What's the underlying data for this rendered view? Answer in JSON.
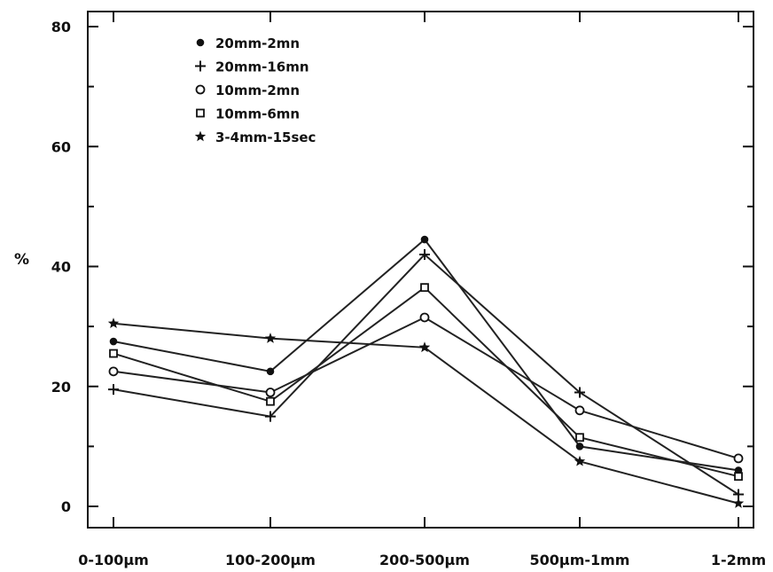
{
  "chart_data": {
    "type": "line",
    "title": "",
    "xlabel": "",
    "ylabel": "%",
    "categories": [
      "0-100µm",
      "100-200µm",
      "200-500µm",
      "500µm-1mm",
      "1-2mm"
    ],
    "yticks": [
      "0",
      "20",
      "40",
      "60",
      "80"
    ],
    "ylim": [
      0,
      80
    ],
    "grid": false,
    "legend_position": "top-left",
    "series": [
      {
        "name": "20mm-2mn",
        "marker": "filled-circle",
        "values": [
          27.5,
          22.5,
          44.5,
          10,
          6
        ]
      },
      {
        "name": "20mm-16mn",
        "marker": "plus",
        "values": [
          19.5,
          15,
          42,
          19,
          2
        ]
      },
      {
        "name": "10mm-2mn",
        "marker": "open-circle",
        "values": [
          22.5,
          19,
          31.5,
          16,
          8
        ]
      },
      {
        "name": "10mm-6mn",
        "marker": "open-square",
        "values": [
          25.5,
          17.5,
          36.5,
          11.5,
          5
        ]
      },
      {
        "name": "3-4mm-15sec",
        "marker": "star",
        "values": [
          30.5,
          28,
          26.5,
          7.5,
          0.5
        ]
      }
    ]
  }
}
